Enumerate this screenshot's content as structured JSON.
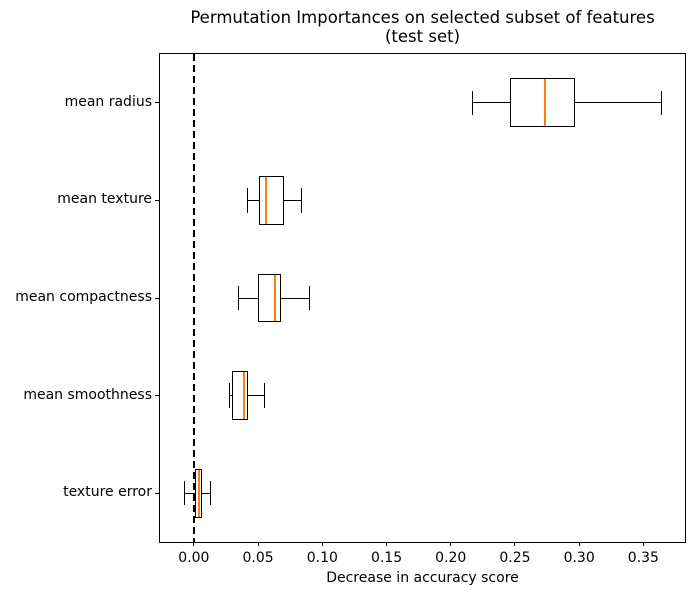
{
  "chart_data": {
    "type": "boxplot",
    "orientation": "horizontal",
    "title_lines": [
      "Permutation Importances on selected subset of features",
      "(test set)"
    ],
    "xlabel": "Decrease in accuracy score",
    "ylabel": "",
    "xlim": [
      -0.0264,
      0.3824
    ],
    "x_tick_values": [
      0.0,
      0.05,
      0.1,
      0.15,
      0.2,
      0.25,
      0.3,
      0.35
    ],
    "x_tick_labels": [
      "0.00",
      "0.05",
      "0.10",
      "0.15",
      "0.20",
      "0.25",
      "0.30",
      "0.35"
    ],
    "categories_top_to_bottom": [
      "mean radius",
      "mean texture",
      "mean compactness",
      "mean smoothness",
      "texture error"
    ],
    "boxes": [
      {
        "label": "mean radius",
        "whislo": 0.217,
        "q1": 0.246,
        "med": 0.273,
        "q3": 0.297,
        "whishi": 0.364,
        "fliers": []
      },
      {
        "label": "mean texture",
        "whislo": 0.042,
        "q1": 0.051,
        "med": 0.056,
        "q3": 0.07,
        "whishi": 0.084,
        "fliers": []
      },
      {
        "label": "mean compactness",
        "whislo": 0.035,
        "q1": 0.05,
        "med": 0.063,
        "q3": 0.068,
        "whishi": 0.09,
        "fliers": []
      },
      {
        "label": "mean smoothness",
        "whislo": 0.028,
        "q1": 0.03,
        "med": 0.039,
        "q3": 0.042,
        "whishi": 0.055,
        "fliers": []
      },
      {
        "label": "texture error",
        "whislo": -0.007,
        "q1": 0.001,
        "med": 0.004,
        "q3": 0.0065,
        "whishi": 0.013,
        "fliers": []
      }
    ],
    "reference_line": {
      "x": 0.0,
      "style": "dashed",
      "color": "#000000"
    },
    "box_color": "#000000",
    "median_color": "#ff7f0e",
    "background_color": "#ffffff",
    "grid": false,
    "legend": false
  }
}
